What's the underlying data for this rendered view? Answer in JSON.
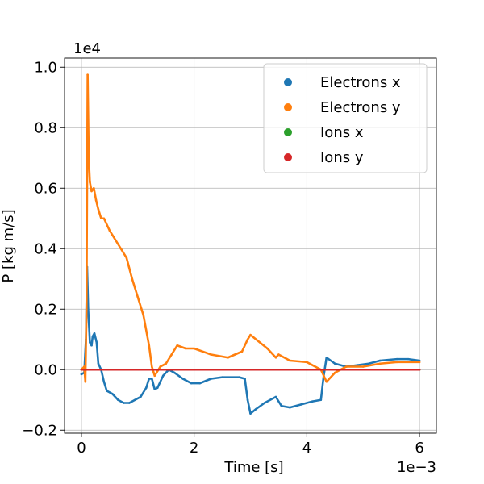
{
  "chart_data": {
    "type": "scatter",
    "title": "",
    "xlabel": "Time [s]",
    "ylabel": "P [kg m/s]",
    "x_offset_label": "1e−3",
    "y_offset_label": "1e4",
    "xlim": [
      -0.3,
      6.3
    ],
    "ylim": [
      -0.21,
      1.03
    ],
    "x_ticks": [
      0,
      2,
      4,
      6
    ],
    "x_tick_labels": [
      "0",
      "2",
      "4",
      "6"
    ],
    "y_ticks": [
      -0.2,
      0.0,
      0.2,
      0.4,
      0.6,
      0.8,
      1.0
    ],
    "y_tick_labels": [
      "−0.2",
      "0.0",
      "0.2",
      "0.4",
      "0.6",
      "0.8",
      "1.0"
    ],
    "grid": true,
    "legend_position": "top-right",
    "series": [
      {
        "name": "Electrons x",
        "color": "#1f77b4",
        "points": [
          [
            0.0,
            -0.015
          ],
          [
            0.05,
            -0.01
          ],
          [
            0.08,
            0.1
          ],
          [
            0.1,
            0.34
          ],
          [
            0.12,
            0.2
          ],
          [
            0.15,
            0.09
          ],
          [
            0.18,
            0.08
          ],
          [
            0.2,
            0.11
          ],
          [
            0.23,
            0.12
          ],
          [
            0.27,
            0.09
          ],
          [
            0.3,
            0.02
          ],
          [
            0.35,
            0.0
          ],
          [
            0.4,
            -0.04
          ],
          [
            0.45,
            -0.07
          ],
          [
            0.55,
            -0.08
          ],
          [
            0.65,
            -0.1
          ],
          [
            0.75,
            -0.11
          ],
          [
            0.85,
            -0.11
          ],
          [
            0.95,
            -0.1
          ],
          [
            1.05,
            -0.09
          ],
          [
            1.15,
            -0.06
          ],
          [
            1.2,
            -0.03
          ],
          [
            1.25,
            -0.03
          ],
          [
            1.3,
            -0.065
          ],
          [
            1.35,
            -0.06
          ],
          [
            1.45,
            -0.02
          ],
          [
            1.55,
            0.0
          ],
          [
            1.65,
            -0.01
          ],
          [
            1.8,
            -0.03
          ],
          [
            1.95,
            -0.045
          ],
          [
            2.1,
            -0.045
          ],
          [
            2.3,
            -0.03
          ],
          [
            2.5,
            -0.025
          ],
          [
            2.8,
            -0.025
          ],
          [
            2.9,
            -0.03
          ],
          [
            2.95,
            -0.1
          ],
          [
            3.0,
            -0.145
          ],
          [
            3.1,
            -0.13
          ],
          [
            3.25,
            -0.11
          ],
          [
            3.45,
            -0.09
          ],
          [
            3.55,
            -0.12
          ],
          [
            3.7,
            -0.125
          ],
          [
            3.9,
            -0.115
          ],
          [
            4.1,
            -0.105
          ],
          [
            4.25,
            -0.1
          ],
          [
            4.3,
            -0.02
          ],
          [
            4.35,
            0.04
          ],
          [
            4.5,
            0.02
          ],
          [
            4.7,
            0.01
          ],
          [
            4.9,
            0.015
          ],
          [
            5.1,
            0.02
          ],
          [
            5.3,
            0.03
          ],
          [
            5.6,
            0.035
          ],
          [
            5.8,
            0.035
          ],
          [
            6.0,
            0.03
          ]
        ]
      },
      {
        "name": "Electrons y",
        "color": "#ff7f0e",
        "points": [
          [
            0.0,
            0.0
          ],
          [
            0.05,
            0.01
          ],
          [
            0.07,
            -0.04
          ],
          [
            0.09,
            0.2
          ],
          [
            0.11,
            0.975
          ],
          [
            0.13,
            0.7
          ],
          [
            0.15,
            0.62
          ],
          [
            0.18,
            0.59
          ],
          [
            0.22,
            0.6
          ],
          [
            0.26,
            0.56
          ],
          [
            0.3,
            0.53
          ],
          [
            0.35,
            0.5
          ],
          [
            0.4,
            0.5
          ],
          [
            0.5,
            0.46
          ],
          [
            0.6,
            0.43
          ],
          [
            0.7,
            0.4
          ],
          [
            0.8,
            0.37
          ],
          [
            0.9,
            0.3
          ],
          [
            1.0,
            0.24
          ],
          [
            1.1,
            0.18
          ],
          [
            1.2,
            0.08
          ],
          [
            1.25,
            0.01
          ],
          [
            1.3,
            -0.02
          ],
          [
            1.4,
            0.01
          ],
          [
            1.5,
            0.02
          ],
          [
            1.6,
            0.05
          ],
          [
            1.7,
            0.08
          ],
          [
            1.85,
            0.07
          ],
          [
            2.0,
            0.07
          ],
          [
            2.3,
            0.05
          ],
          [
            2.6,
            0.04
          ],
          [
            2.85,
            0.06
          ],
          [
            2.95,
            0.1
          ],
          [
            3.0,
            0.115
          ],
          [
            3.1,
            0.1
          ],
          [
            3.3,
            0.07
          ],
          [
            3.45,
            0.04
          ],
          [
            3.5,
            0.05
          ],
          [
            3.7,
            0.03
          ],
          [
            4.0,
            0.025
          ],
          [
            4.25,
            0.0
          ],
          [
            4.35,
            -0.04
          ],
          [
            4.5,
            -0.01
          ],
          [
            4.7,
            0.01
          ],
          [
            5.0,
            0.01
          ],
          [
            5.3,
            0.02
          ],
          [
            5.6,
            0.025
          ],
          [
            6.0,
            0.025
          ]
        ]
      },
      {
        "name": "Ions x",
        "color": "#2ca02c",
        "points": [
          [
            0.0,
            0.0
          ],
          [
            1.0,
            0.0
          ],
          [
            2.0,
            0.0
          ],
          [
            3.0,
            0.0
          ],
          [
            4.0,
            0.0
          ],
          [
            5.0,
            0.0
          ],
          [
            6.0,
            0.0
          ]
        ]
      },
      {
        "name": "Ions y",
        "color": "#d62728",
        "points": [
          [
            0.0,
            0.0
          ],
          [
            1.0,
            0.0
          ],
          [
            2.0,
            0.0
          ],
          [
            3.0,
            0.0
          ],
          [
            4.0,
            0.0
          ],
          [
            5.0,
            0.0
          ],
          [
            6.0,
            0.0
          ]
        ]
      }
    ]
  }
}
